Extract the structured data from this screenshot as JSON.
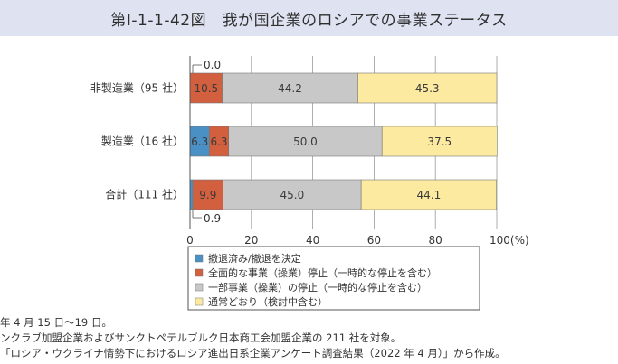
{
  "title": "第Ⅰ-1-1-42図　我が国企業のロシアでの事業ステータス",
  "chart_data": {
    "type": "bar",
    "orientation": "horizontal",
    "stacked": true,
    "categories": [
      "非製造業（95 社）",
      "製造業（16 社）",
      "合計（111 社）"
    ],
    "series": [
      {
        "name": "撤退済み/撤退を決定",
        "color": "#4a90c4",
        "values": [
          0.0,
          6.3,
          0.9
        ]
      },
      {
        "name": "全面的な事業（操業）停止（一時的な停止を含む）",
        "color": "#d2603f",
        "values": [
          10.5,
          6.3,
          9.9
        ]
      },
      {
        "name": "一部事業（操業）の停止（一時的な停止を含む）",
        "color": "#c8c8c8",
        "values": [
          44.2,
          50.0,
          45.0
        ]
      },
      {
        "name": "通常どおり（検討中含む）",
        "color": "#fbeaa0",
        "values": [
          45.3,
          37.5,
          44.1
        ]
      }
    ],
    "data_labels": [
      [
        "",
        "10.5",
        "44.2",
        "45.3"
      ],
      [
        "6.3",
        "6.3",
        "50.0",
        "37.5"
      ],
      [
        "",
        "9.9",
        "45.0",
        "44.1"
      ]
    ],
    "annotations": [
      {
        "category_index": 0,
        "text": "0.0",
        "position": "above"
      },
      {
        "category_index": 2,
        "text": "0.9",
        "position": "below"
      }
    ],
    "xlim": [
      0,
      100
    ],
    "x_ticks": [
      "0",
      "20",
      "40",
      "60",
      "80",
      "100(%)"
    ],
    "x_tick_values": [
      0,
      20,
      40,
      60,
      80,
      100
    ],
    "grid": true,
    "legend_position": "bottom"
  },
  "notes": [
    "年 4 月 15 日〜19 日。",
    "ンクラブ加盟企業およびサンクトペテルブルク日本商工会加盟企業の 211 社を対象。",
    "「ロシア・ウクライナ情勢下におけるロシア進出日系企業アンケート調査結果（2022 年 4 月）」から作成。"
  ]
}
